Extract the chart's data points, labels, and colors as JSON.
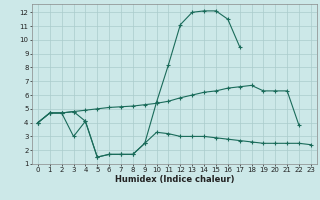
{
  "xlabel": "Humidex (Indice chaleur)",
  "background_color": "#cce8e8",
  "grid_color": "#aacccc",
  "line_color": "#1a6b5a",
  "x_values": [
    0,
    1,
    2,
    3,
    4,
    5,
    6,
    7,
    8,
    9,
    10,
    11,
    12,
    13,
    14,
    15,
    16,
    17,
    18,
    19,
    20,
    21,
    22,
    23
  ],
  "line1": [
    4.0,
    4.7,
    4.7,
    3.0,
    4.1,
    1.5,
    1.7,
    1.7,
    1.7,
    2.5,
    5.5,
    8.2,
    11.1,
    12.0,
    12.1,
    12.1,
    11.5,
    9.5,
    null,
    null,
    null,
    null,
    null,
    null
  ],
  "line2": [
    4.0,
    4.7,
    4.7,
    4.8,
    4.9,
    5.0,
    5.1,
    5.15,
    5.2,
    5.3,
    5.4,
    5.55,
    5.8,
    6.0,
    6.2,
    6.3,
    6.5,
    6.6,
    6.7,
    6.3,
    6.3,
    6.3,
    3.8,
    null
  ],
  "line3": [
    4.0,
    4.7,
    4.7,
    4.8,
    4.1,
    1.5,
    1.7,
    1.7,
    1.7,
    2.5,
    3.3,
    3.2,
    3.0,
    3.0,
    3.0,
    2.9,
    2.8,
    2.7,
    2.6,
    2.5,
    2.5,
    2.5,
    2.5,
    2.4
  ],
  "ylim": [
    1,
    12.6
  ],
  "xlim": [
    -0.5,
    23.5
  ],
  "yticks": [
    1,
    2,
    3,
    4,
    5,
    6,
    7,
    8,
    9,
    10,
    11,
    12
  ],
  "xticks": [
    0,
    1,
    2,
    3,
    4,
    5,
    6,
    7,
    8,
    9,
    10,
    11,
    12,
    13,
    14,
    15,
    16,
    17,
    18,
    19,
    20,
    21,
    22,
    23
  ],
  "xlabel_fontsize": 6.0,
  "tick_fontsize": 5.0
}
